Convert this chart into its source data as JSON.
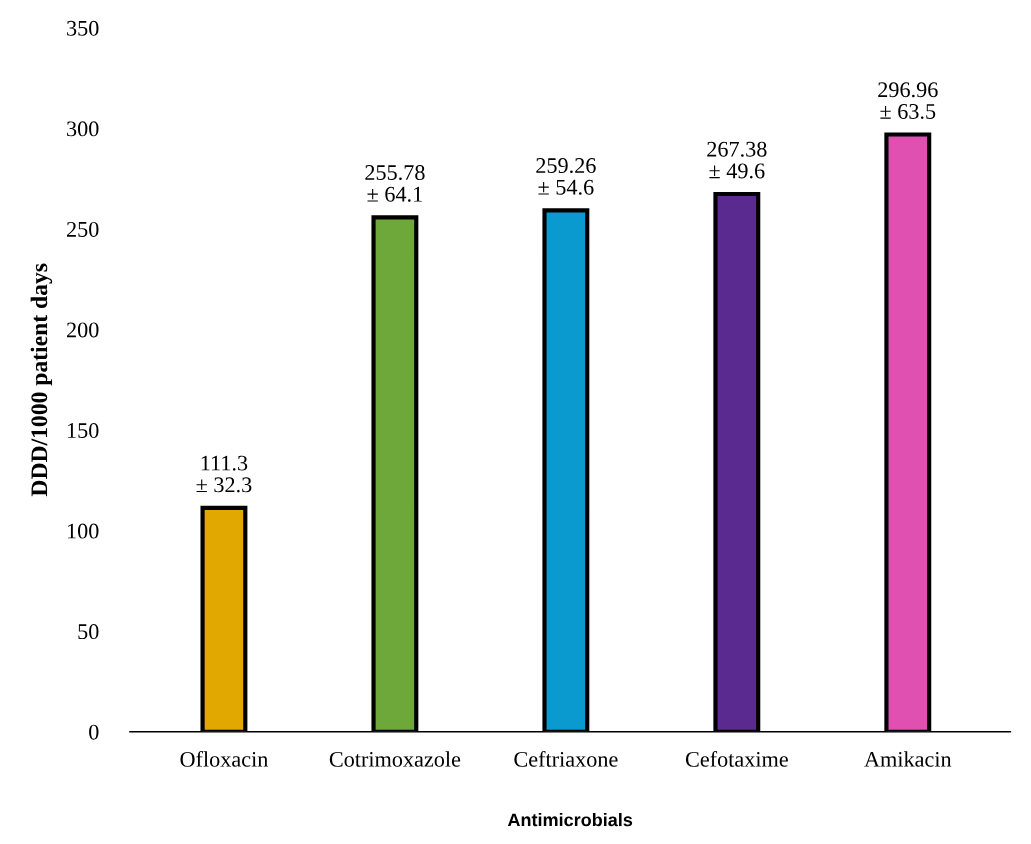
{
  "chart_data": {
    "type": "bar",
    "xlabel": "Antimicrobials",
    "ylabel": "DDD/1000 patient days",
    "categories": [
      "Ofloxacin",
      "Cotrimoxazole",
      "Ceftriaxone",
      "Cefotaxime",
      "Amikacin"
    ],
    "values": [
      111.3,
      255.78,
      259.26,
      267.38,
      296.96
    ],
    "colors": [
      "#e0a800",
      "#6fa83a",
      "#0a9ad0",
      "#5a2a90",
      "#e050b0"
    ],
    "value_labels": [
      "111.3\n± 32.3",
      "255.78\n± 64.1",
      "259.26\n± 54.6",
      "267.38\n± 49.6",
      "296.96\n± 63.5"
    ],
    "ylim": [
      0,
      350
    ],
    "yticks": [
      0,
      50,
      100,
      150,
      200,
      250,
      300,
      350
    ],
    "grid": false
  }
}
